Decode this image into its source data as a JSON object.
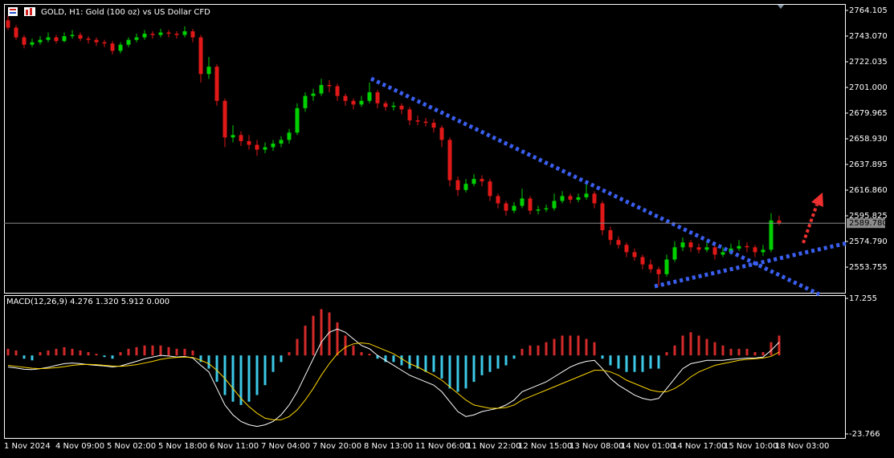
{
  "chart_data": [
    {
      "type": "candlestick",
      "title": "GOLD, H1:  Gold (100 oz) vs US Dollar CFD",
      "colors": {
        "up": "#00d000",
        "down": "#e01818"
      },
      "ylim": [
        2532.75,
        2769.35
      ],
      "yticks": [
        {
          "value": 2764.105,
          "label": "2764.105"
        },
        {
          "value": 2743.07,
          "label": "2743.070"
        },
        {
          "value": 2722.035,
          "label": "2722.035"
        },
        {
          "value": 2701.0,
          "label": "2701.000"
        },
        {
          "value": 2679.965,
          "label": "2679.965"
        },
        {
          "value": 2658.93,
          "label": "2658.930"
        },
        {
          "value": 2637.895,
          "label": "2637.895"
        },
        {
          "value": 2616.86,
          "label": "2616.860"
        },
        {
          "value": 2595.825,
          "label": "2595.825"
        },
        {
          "value": 2574.79,
          "label": "2574.790"
        },
        {
          "value": 2553.755,
          "label": "2553.755"
        }
      ],
      "current_price": {
        "value": 2589.78,
        "label": "2589.780"
      },
      "x_labels": [
        "1 Nov 2024",
        "4 Nov 09:00",
        "5 Nov 02:00",
        "5 Nov 18:00",
        "6 Nov 11:00",
        "7 Nov 04:00",
        "7 Nov 20:00",
        "8 Nov 13:00",
        "11 Nov 06:00",
        "11 Nov 22:00",
        "12 Nov 15:00",
        "13 Nov 08:00",
        "14 Nov 01:00",
        "14 Nov 17:00",
        "15 Nov 10:00",
        "18 Nov 03:00"
      ],
      "candles": [
        [
          2756,
          2760,
          2748,
          2750
        ],
        [
          2750,
          2752,
          2740,
          2742
        ],
        [
          2742,
          2744,
          2733,
          2736
        ],
        [
          2736,
          2741,
          2734,
          2738
        ],
        [
          2738,
          2743,
          2736,
          2740
        ],
        [
          2740,
          2746,
          2738,
          2742
        ],
        [
          2742,
          2744,
          2737,
          2739
        ],
        [
          2739,
          2746,
          2738,
          2743
        ],
        [
          2743,
          2748,
          2741,
          2744
        ],
        [
          2744,
          2746,
          2739,
          2741
        ],
        [
          2741,
          2743,
          2737,
          2740
        ],
        [
          2740,
          2742,
          2735,
          2738
        ],
        [
          2738,
          2740,
          2734,
          2737
        ],
        [
          2737,
          2739,
          2728,
          2731
        ],
        [
          2731,
          2738,
          2729,
          2736
        ],
        [
          2736,
          2742,
          2734,
          2740
        ],
        [
          2740,
          2745,
          2738,
          2742
        ],
        [
          2742,
          2748,
          2740,
          2745
        ],
        [
          2745,
          2747,
          2741,
          2744
        ],
        [
          2744,
          2749,
          2742,
          2746
        ],
        [
          2746,
          2748,
          2742,
          2745
        ],
        [
          2745,
          2747,
          2741,
          2744
        ],
        [
          2744,
          2751,
          2742,
          2747
        ],
        [
          2747,
          2749,
          2738,
          2742
        ],
        [
          2742,
          2744,
          2705,
          2712
        ],
        [
          2712,
          2726,
          2708,
          2718
        ],
        [
          2718,
          2720,
          2686,
          2690
        ],
        [
          2690,
          2692,
          2652,
          2660
        ],
        [
          2660,
          2670,
          2656,
          2662
        ],
        [
          2662,
          2665,
          2653,
          2657
        ],
        [
          2657,
          2662,
          2650,
          2654
        ],
        [
          2654,
          2658,
          2645,
          2650
        ],
        [
          2650,
          2656,
          2647,
          2652
        ],
        [
          2652,
          2658,
          2649,
          2655
        ],
        [
          2655,
          2661,
          2652,
          2658
        ],
        [
          2658,
          2667,
          2655,
          2664
        ],
        [
          2664,
          2688,
          2662,
          2684
        ],
        [
          2684,
          2697,
          2681,
          2694
        ],
        [
          2694,
          2700,
          2690,
          2696
        ],
        [
          2696,
          2708,
          2694,
          2703
        ],
        [
          2703,
          2707,
          2697,
          2702
        ],
        [
          2702,
          2704,
          2690,
          2694
        ],
        [
          2694,
          2696,
          2686,
          2690
        ],
        [
          2690,
          2692,
          2683,
          2687
        ],
        [
          2687,
          2694,
          2685,
          2690
        ],
        [
          2690,
          2705,
          2688,
          2697
        ],
        [
          2697,
          2699,
          2684,
          2688
        ],
        [
          2688,
          2690,
          2682,
          2685
        ],
        [
          2685,
          2689,
          2682,
          2686
        ],
        [
          2686,
          2688,
          2679,
          2683
        ],
        [
          2683,
          2685,
          2670,
          2674
        ],
        [
          2674,
          2678,
          2670,
          2673
        ],
        [
          2673,
          2676,
          2669,
          2672
        ],
        [
          2672,
          2675,
          2664,
          2668
        ],
        [
          2668,
          2670,
          2652,
          2658
        ],
        [
          2658,
          2660,
          2620,
          2625
        ],
        [
          2625,
          2628,
          2612,
          2617
        ],
        [
          2617,
          2626,
          2615,
          2622
        ],
        [
          2622,
          2630,
          2620,
          2626
        ],
        [
          2626,
          2629,
          2620,
          2624
        ],
        [
          2624,
          2626,
          2608,
          2612
        ],
        [
          2612,
          2614,
          2602,
          2606
        ],
        [
          2606,
          2608,
          2596,
          2600
        ],
        [
          2600,
          2607,
          2598,
          2604
        ],
        [
          2604,
          2618,
          2602,
          2610
        ],
        [
          2610,
          2612,
          2597,
          2600
        ],
        [
          2600,
          2604,
          2597,
          2601
        ],
        [
          2601,
          2605,
          2599,
          2602
        ],
        [
          2602,
          2614,
          2600,
          2608
        ],
        [
          2608,
          2616,
          2606,
          2612
        ],
        [
          2612,
          2614,
          2606,
          2609
        ],
        [
          2609,
          2614,
          2607,
          2611
        ],
        [
          2611,
          2622,
          2609,
          2614
        ],
        [
          2614,
          2616,
          2602,
          2606
        ],
        [
          2606,
          2608,
          2580,
          2584
        ],
        [
          2584,
          2587,
          2572,
          2576
        ],
        [
          2576,
          2579,
          2569,
          2572
        ],
        [
          2572,
          2574,
          2562,
          2566
        ],
        [
          2566,
          2569,
          2559,
          2562
        ],
        [
          2562,
          2564,
          2552,
          2556
        ],
        [
          2556,
          2560,
          2549,
          2552
        ],
        [
          2552,
          2554,
          2538,
          2548
        ],
        [
          2548,
          2564,
          2546,
          2560
        ],
        [
          2560,
          2575,
          2558,
          2570
        ],
        [
          2570,
          2578,
          2567,
          2574
        ],
        [
          2574,
          2576,
          2566,
          2570
        ],
        [
          2570,
          2573,
          2565,
          2568
        ],
        [
          2568,
          2574,
          2566,
          2570
        ],
        [
          2570,
          2572,
          2560,
          2564
        ],
        [
          2564,
          2570,
          2562,
          2566
        ],
        [
          2566,
          2573,
          2564,
          2569
        ],
        [
          2569,
          2576,
          2567,
          2571
        ],
        [
          2571,
          2574,
          2566,
          2570
        ],
        [
          2570,
          2572,
          2562,
          2566
        ],
        [
          2566,
          2572,
          2563,
          2568
        ],
        [
          2568,
          2598,
          2566,
          2592
        ],
        [
          2592,
          2596,
          2588,
          2590
        ]
      ]
    },
    {
      "type": "macd",
      "title": "MACD(12,26,9) 4.276 1.320 5.912 0.000",
      "hist_colors": {
        "positive": "#d42a2a",
        "negative": "#3cc8e6"
      },
      "ylim": [
        -24.98,
        18.23
      ],
      "yticks": [
        {
          "value": 17.255,
          "label": "17.255"
        },
        {
          "value": -23.766,
          "label": "-23.766"
        }
      ],
      "histogram": [
        2,
        1.5,
        -1,
        -1.5,
        1,
        1.5,
        2,
        2.5,
        2,
        1.5,
        1,
        0.5,
        -0.5,
        -1,
        1,
        2,
        2.5,
        3,
        3,
        3,
        2.5,
        2,
        2,
        1.5,
        -2,
        -4,
        -8,
        -12,
        -14,
        -15,
        -14,
        -12,
        -9,
        -5,
        -2,
        1,
        5,
        9,
        12,
        14,
        13,
        10,
        6,
        3,
        1,
        0.5,
        -1,
        -2,
        -2,
        -3,
        -4,
        -4,
        -5,
        -5,
        -7,
        -10,
        -11,
        -10,
        -8,
        -6,
        -5,
        -4,
        -3,
        -1,
        2,
        3,
        3,
        4,
        5,
        6,
        6,
        6,
        5,
        4,
        -1,
        -3,
        -4,
        -5,
        -5,
        -5,
        -4,
        -4,
        1,
        3,
        6,
        7,
        6,
        5,
        4,
        3,
        2,
        2,
        2,
        1,
        1,
        4,
        6
      ],
      "series": [
        {
          "color": "#ffffff",
          "values": [
            -3.5,
            -3.8,
            -4.2,
            -4.3,
            -4,
            -3.6,
            -3,
            -2.5,
            -2.3,
            -2.5,
            -2.8,
            -3,
            -3.2,
            -3.5,
            -3.2,
            -2.5,
            -1.8,
            -1,
            -0.5,
            0,
            -0.2,
            -0.5,
            -0.3,
            -0.8,
            -3,
            -5,
            -10,
            -15,
            -18,
            -20,
            -21,
            -21.5,
            -21,
            -20,
            -18,
            -15,
            -11,
            -6,
            -1,
            4,
            7,
            8,
            7,
            5,
            3,
            2,
            0,
            -1.5,
            -3,
            -4.5,
            -6,
            -7,
            -8,
            -9,
            -11,
            -14,
            -17,
            -18.5,
            -18,
            -17,
            -16.5,
            -16,
            -15,
            -13.5,
            -11,
            -10,
            -9,
            -8,
            -6.5,
            -5,
            -3.5,
            -2.5,
            -1.8,
            -1.5,
            -4,
            -7,
            -9,
            -10.5,
            -12,
            -13,
            -13.5,
            -13,
            -10,
            -7,
            -4,
            -2.5,
            -2,
            -1.5,
            -1.5,
            -1.5,
            -1.2,
            -1,
            -0.8,
            -0.8,
            -0.5,
            1.5,
            4
          ]
        },
        {
          "color": "#ffd700",
          "values": [
            -3,
            -3.3,
            -3.6,
            -3.9,
            -4,
            -3.9,
            -3.7,
            -3.4,
            -3,
            -2.8,
            -2.7,
            -2.8,
            -3,
            -3.2,
            -3.3,
            -3.1,
            -2.8,
            -2.3,
            -1.8,
            -1.2,
            -0.8,
            -0.6,
            -0.5,
            -0.6,
            -1.5,
            -2.5,
            -4.5,
            -7,
            -10,
            -13,
            -15.5,
            -17.5,
            -19,
            -19.5,
            -19.5,
            -18.5,
            -16.5,
            -13.5,
            -10,
            -6,
            -2.5,
            0.5,
            2.5,
            3.5,
            3.8,
            3.5,
            2.5,
            1.5,
            0.5,
            -1,
            -2.5,
            -3.5,
            -4.8,
            -6,
            -7.5,
            -9.5,
            -11.5,
            -13.5,
            -15,
            -15.5,
            -16,
            -16,
            -15.8,
            -15,
            -13.5,
            -12.5,
            -11.5,
            -10.5,
            -9.5,
            -8.5,
            -7.5,
            -6.5,
            -5.5,
            -4.5,
            -4.5,
            -5,
            -6,
            -7.5,
            -8.5,
            -9.5,
            -10.5,
            -11,
            -11,
            -10,
            -8.5,
            -6.5,
            -5,
            -4,
            -3,
            -2.5,
            -2,
            -1.5,
            -1.2,
            -1,
            -0.8,
            -0.3,
            1
          ]
        }
      ]
    }
  ]
}
